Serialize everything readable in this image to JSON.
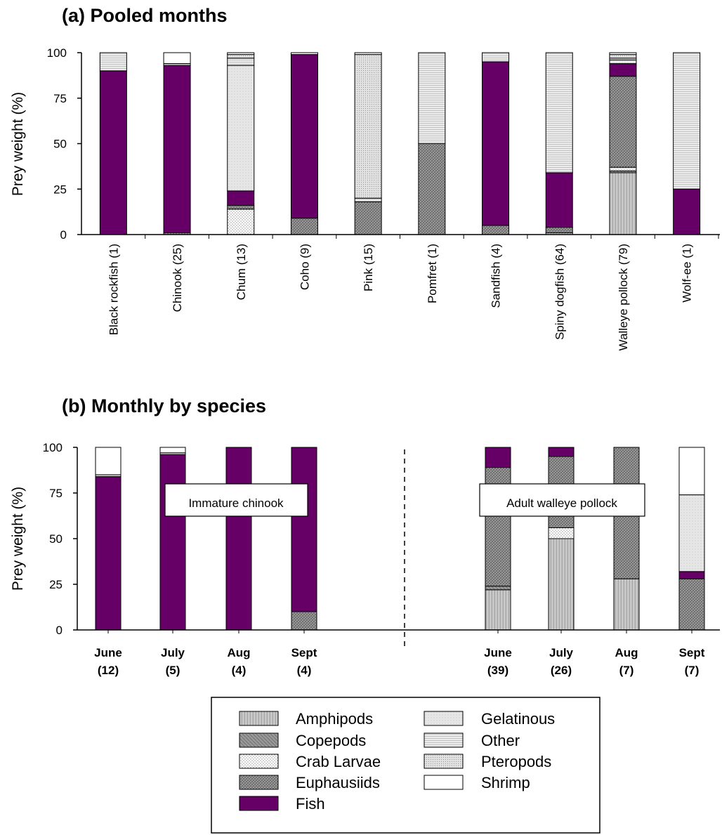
{
  "colors": {
    "Fish": "#660066",
    "Shrimp": "#ffffff"
  },
  "legend": {
    "entries": [
      "Amphipods",
      "Copepods",
      "Crab Larvae",
      "Euphausiids",
      "Fish",
      "Gelatinous",
      "Other",
      "Pteropods",
      "Shrimp"
    ]
  },
  "chart_data": [
    {
      "type": "bar",
      "stacked": true,
      "title": "(a)  Pooled months",
      "ylabel": "Prey weight (%)",
      "ylim": [
        0,
        100
      ],
      "yticks": [
        0,
        25,
        50,
        75,
        100
      ],
      "categories": [
        "Black rockfish (1)",
        "Chinook (25)",
        "Chum (13)",
        "Coho (9)",
        "Pink (15)",
        "Pomfret (1)",
        "Sandfish (4)",
        "Spiny dogfish (64)",
        "Walleye pollock (79)",
        "Wolf-ee (1)"
      ],
      "series": [
        {
          "name": "Amphipods",
          "values": [
            0,
            0,
            0,
            0,
            0,
            0,
            0,
            1,
            34,
            0
          ]
        },
        {
          "name": "Copepods",
          "values": [
            0,
            0,
            0,
            0,
            0,
            0,
            0,
            0,
            1,
            0
          ]
        },
        {
          "name": "Crab Larvae",
          "values": [
            0,
            0,
            14,
            0,
            0,
            0,
            0,
            0,
            2,
            0
          ]
        },
        {
          "name": "Euphausiids",
          "values": [
            0,
            1,
            2,
            9,
            18,
            50,
            5,
            3,
            50,
            0
          ]
        },
        {
          "name": "Fish",
          "values": [
            90,
            92,
            8,
            90,
            0,
            0,
            90,
            30,
            7,
            25
          ]
        },
        {
          "name": "Gelatinous",
          "values": [
            0,
            0,
            69,
            0,
            0,
            0,
            0,
            0,
            2,
            0
          ]
        },
        {
          "name": "Other",
          "values": [
            10,
            1,
            4,
            0,
            2,
            50,
            5,
            66,
            1,
            75
          ]
        },
        {
          "name": "Pteropods",
          "values": [
            0,
            0,
            2,
            0,
            79,
            0,
            0,
            0,
            2,
            0
          ]
        },
        {
          "name": "Shrimp",
          "values": [
            0,
            6,
            1,
            1,
            1,
            0,
            0,
            0,
            1,
            0
          ]
        }
      ]
    },
    {
      "type": "bar",
      "stacked": true,
      "title": "(b)  Monthly by species",
      "ylabel": "Prey weight (%)",
      "ylim": [
        0,
        100
      ],
      "yticks": [
        0,
        25,
        50,
        75,
        100
      ],
      "groups": [
        {
          "label": "Immature  chinook",
          "categories": [
            [
              "June",
              "(12)"
            ],
            [
              "July",
              "(5)"
            ],
            [
              "Aug",
              "(4)"
            ],
            [
              "Sept",
              "(4)"
            ]
          ]
        },
        {
          "label": "Adult walleye pollock",
          "categories": [
            [
              "June",
              "(39)"
            ],
            [
              "July",
              "(26)"
            ],
            [
              "Aug",
              "(7)"
            ],
            [
              "Sept",
              "(7)"
            ]
          ]
        }
      ],
      "series": [
        {
          "name": "Amphipods",
          "values": [
            0,
            0,
            0,
            0,
            22,
            50,
            28,
            0
          ]
        },
        {
          "name": "Copepods",
          "values": [
            0,
            0,
            0,
            0,
            2,
            0,
            0,
            0
          ]
        },
        {
          "name": "Crab Larvae",
          "values": [
            0,
            0,
            0,
            0,
            0,
            6,
            0,
            0
          ]
        },
        {
          "name": "Euphausiids",
          "values": [
            0,
            0,
            0,
            10,
            65,
            39,
            72,
            28
          ]
        },
        {
          "name": "Fish",
          "values": [
            84,
            96,
            100,
            90,
            11,
            5,
            0,
            4
          ]
        },
        {
          "name": "Gelatinous",
          "values": [
            0,
            0,
            0,
            0,
            0,
            0,
            0,
            42
          ]
        },
        {
          "name": "Other",
          "values": [
            1,
            1,
            0,
            0,
            0,
            0,
            0,
            0
          ]
        },
        {
          "name": "Pteropods",
          "values": [
            0,
            0,
            0,
            0,
            0,
            0,
            0,
            0
          ]
        },
        {
          "name": "Shrimp",
          "values": [
            15,
            3,
            0,
            0,
            0,
            0,
            0,
            26
          ]
        }
      ]
    }
  ]
}
